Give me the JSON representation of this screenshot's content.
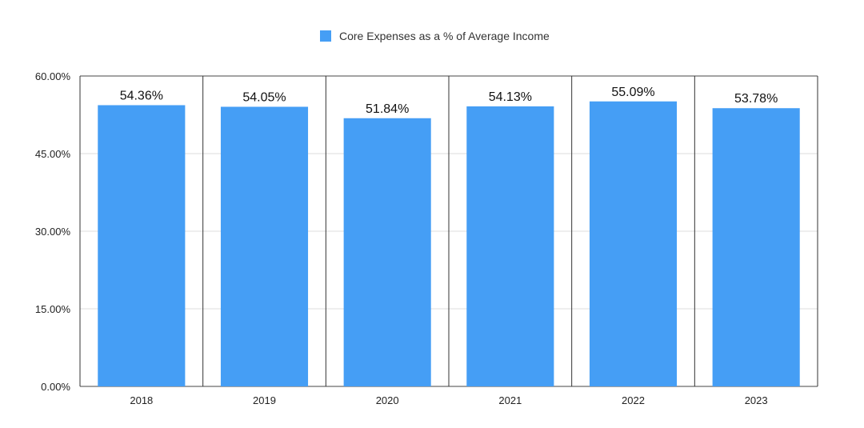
{
  "chart_data": {
    "type": "bar",
    "categories": [
      "2018",
      "2019",
      "2020",
      "2021",
      "2022",
      "2023"
    ],
    "series": [
      {
        "name": "Core Expenses as a % of Average Income",
        "values": [
          54.36,
          54.05,
          51.84,
          54.13,
          55.09,
          53.78
        ],
        "color": "#459ef5"
      }
    ],
    "data_labels": [
      "54.36%",
      "54.05%",
      "51.84%",
      "54.13%",
      "55.09%",
      "53.78%"
    ],
    "y_ticks": [
      0,
      15,
      30,
      45,
      60
    ],
    "y_tick_labels": [
      "0.00%",
      "15.00%",
      "30.00%",
      "45.00%",
      "60.00%"
    ],
    "ylim": [
      0,
      60
    ],
    "title": "",
    "xlabel": "",
    "ylabel": "",
    "legend_position": "top-center",
    "grid": true
  }
}
